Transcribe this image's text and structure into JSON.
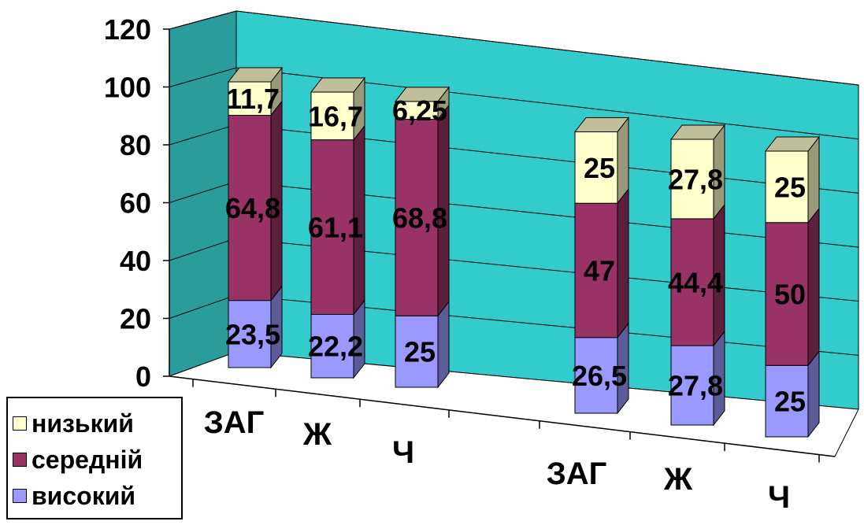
{
  "chart_data": {
    "type": "bar",
    "stacked": true,
    "projection": "3d",
    "categories": [
      "ЗАГ",
      "Ж",
      "Ч",
      "ЗАГ",
      "Ж",
      "Ч"
    ],
    "series": [
      {
        "name": "високий",
        "values": [
          "23,5",
          "22,2",
          "25",
          "26,5",
          "27,8",
          "25"
        ],
        "numeric": [
          23.5,
          22.2,
          25,
          26.5,
          27.8,
          25
        ],
        "color": "#9999ff"
      },
      {
        "name": "середній",
        "values": [
          "64,8",
          "61,1",
          "68,8",
          "47",
          "44,4",
          "50"
        ],
        "numeric": [
          64.8,
          61.1,
          68.8,
          47,
          44.4,
          50
        ],
        "color": "#993366"
      },
      {
        "name": "низький",
        "values": [
          "11,7",
          "16,7",
          "6,25",
          "25",
          "27,8",
          "25"
        ],
        "numeric": [
          11.7,
          16.7,
          6.25,
          25,
          27.8,
          25
        ],
        "color": "#ffffcc"
      }
    ],
    "yticks": [
      "0",
      "20",
      "40",
      "60",
      "80",
      "100",
      "120"
    ],
    "ylim": [
      0,
      120
    ],
    "gridlines": true,
    "wall_color": "#33cccc",
    "legend_position": "bottom-left",
    "legend_order": [
      "низький",
      "середній",
      "високий"
    ]
  }
}
